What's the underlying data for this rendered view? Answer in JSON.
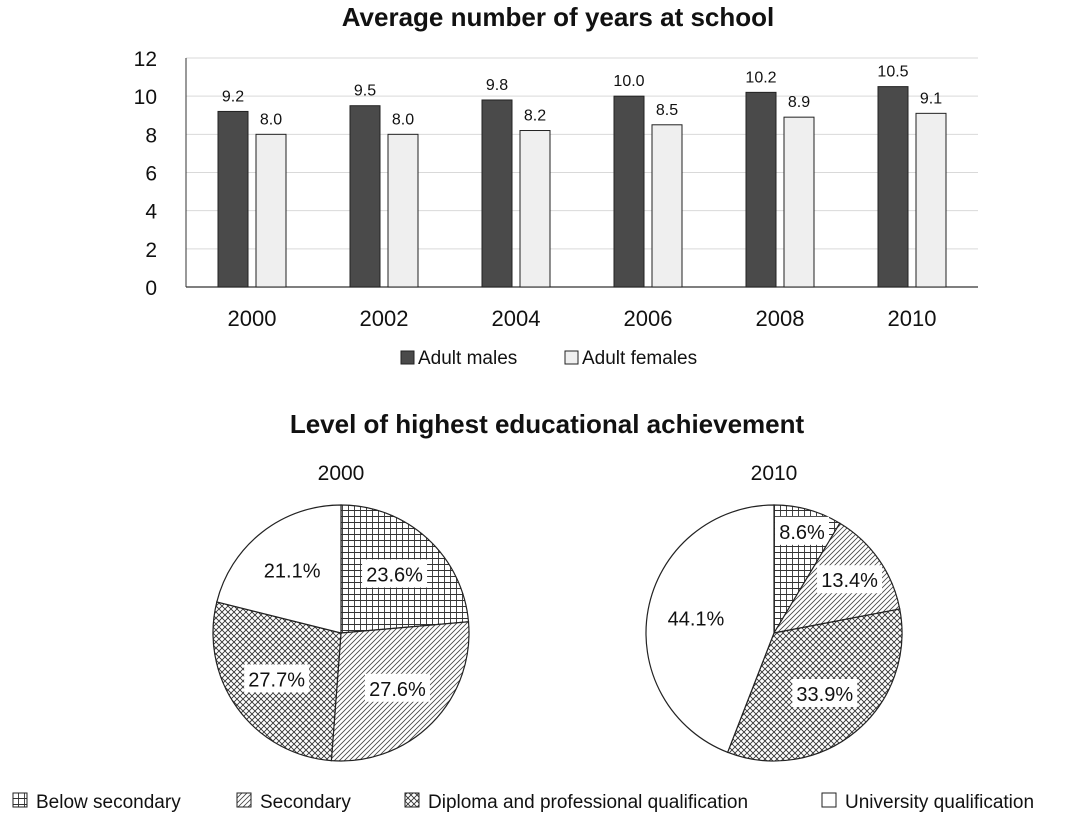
{
  "colors": {
    "male_bar": "#4a4a4a",
    "female_bar": "#efefef",
    "outline": "#222222",
    "grid": "#d9d9d9",
    "text": "#111111"
  },
  "chart_data": [
    {
      "type": "bar",
      "title": "Average number of years at school",
      "categories": [
        "2000",
        "2002",
        "2004",
        "2006",
        "2008",
        "2010"
      ],
      "series": [
        {
          "name": "Adult males",
          "values": [
            9.2,
            9.5,
            9.8,
            10.0,
            10.2,
            10.5
          ],
          "labels": [
            "9.2",
            "9.5",
            "9.8",
            "10.0",
            "10.2",
            "10.5"
          ]
        },
        {
          "name": "Adult females",
          "values": [
            8.0,
            8.0,
            8.2,
            8.5,
            8.9,
            9.1
          ],
          "labels": [
            "8.0",
            "8.0",
            "8.2",
            "8.5",
            "8.9",
            "9.1"
          ]
        }
      ],
      "ylim": [
        0,
        12
      ],
      "yticks": [
        "0",
        "2",
        "4",
        "6",
        "8",
        "10",
        "12"
      ],
      "grid": true,
      "legend": "bottom"
    },
    {
      "type": "pie",
      "group_title": "Level of highest educational achievement",
      "title": "2000",
      "slices": [
        {
          "name": "Below secondary",
          "value": 23.6,
          "label": "23.6%"
        },
        {
          "name": "Secondary",
          "value": 27.6,
          "label": "27.6%"
        },
        {
          "name": "Diploma and professional qualification",
          "value": 27.7,
          "label": "27.7%"
        },
        {
          "name": "University qualification",
          "value": 21.1,
          "label": "21.1%"
        }
      ]
    },
    {
      "type": "pie",
      "title": "2010",
      "slices": [
        {
          "name": "Below secondary",
          "value": 8.6,
          "label": "8.6%"
        },
        {
          "name": "Secondary",
          "value": 13.4,
          "label": "13.4%"
        },
        {
          "name": "Diploma and professional qualification",
          "value": 33.9,
          "label": "33.9%"
        },
        {
          "name": "University qualification",
          "value": 44.1,
          "label": "44.1%"
        }
      ]
    }
  ],
  "pie_legend": [
    "Below secondary",
    "Secondary",
    "Diploma and professional qualification",
    "University qualification"
  ]
}
